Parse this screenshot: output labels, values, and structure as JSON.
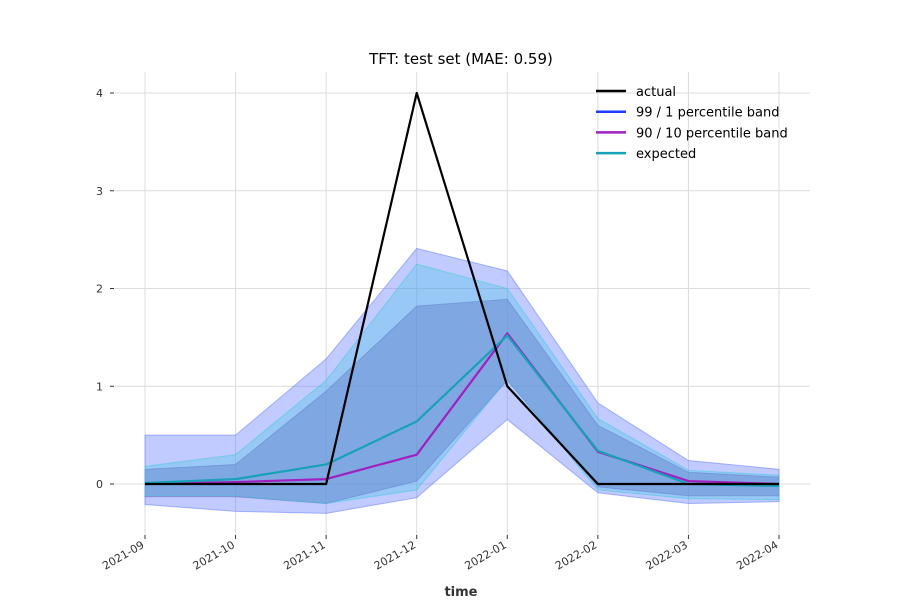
{
  "chart_data": {
    "type": "line",
    "title": "TFT: test set (MAE: 0.59)",
    "xlabel": "time",
    "ylabel": "",
    "x": [
      "2021-09",
      "2021-10",
      "2021-11",
      "2021-12",
      "2022-01",
      "2022-02",
      "2022-03",
      "2022-04"
    ],
    "yticks": [
      0,
      1,
      2,
      3,
      4
    ],
    "ylim": [
      -0.5,
      4.2
    ],
    "grid": true,
    "legend_position": "top-right",
    "series": [
      {
        "name": "actual",
        "color": "#000000",
        "values": [
          0,
          0,
          0,
          4.0,
          1.0,
          0,
          0,
          0
        ]
      },
      {
        "name": "99 / 1 percentile band",
        "color": "#1f3bff",
        "band": true,
        "upper": [
          0.5,
          0.5,
          1.28,
          2.41,
          2.18,
          0.83,
          0.24,
          0.15
        ],
        "lower": [
          -0.21,
          -0.28,
          -0.3,
          -0.14,
          0.66,
          -0.09,
          -0.2,
          -0.18
        ],
        "values": [
          0.02,
          0.04,
          0.2,
          0.64,
          1.53,
          0.32,
          0.01,
          -0.03
        ]
      },
      {
        "name": "90 / 10 percentile band",
        "color": "#a020c0",
        "band": true,
        "upper": [
          0.15,
          0.2,
          0.95,
          1.82,
          1.89,
          0.6,
          0.12,
          0.07
        ],
        "lower": [
          -0.13,
          -0.13,
          -0.2,
          0.03,
          1.06,
          -0.03,
          -0.12,
          -0.12
        ],
        "values": [
          0.0,
          0.02,
          0.05,
          0.3,
          1.54,
          0.33,
          0.03,
          0.0
        ]
      },
      {
        "name": "expected",
        "color": "#17a2b8",
        "band": true,
        "upper": [
          0.18,
          0.3,
          1.06,
          2.25,
          2.0,
          0.67,
          0.14,
          0.09
        ],
        "lower": [
          -0.12,
          -0.12,
          -0.2,
          -0.06,
          1.07,
          -0.06,
          -0.15,
          -0.16
        ],
        "values": [
          0.01,
          0.05,
          0.2,
          0.64,
          1.52,
          0.34,
          0.0,
          -0.02
        ]
      }
    ]
  }
}
